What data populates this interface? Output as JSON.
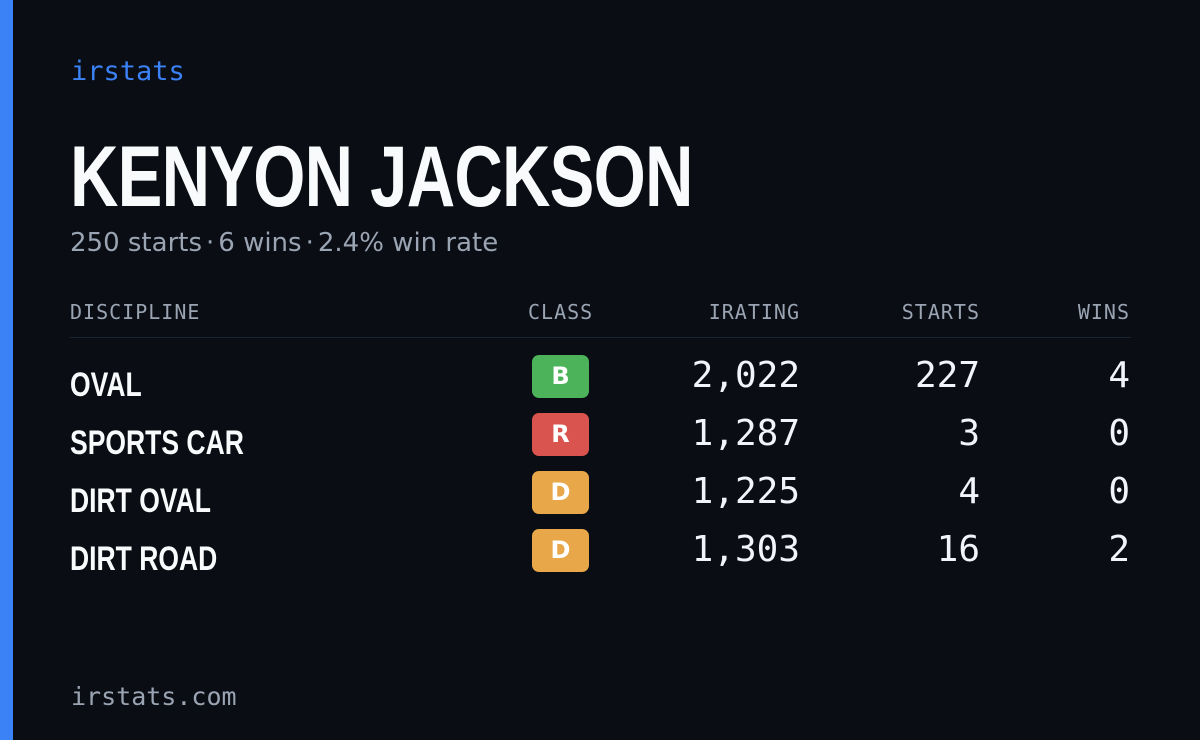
{
  "brand": "irstats",
  "driver": {
    "name": "KENYON JACKSON",
    "starts_text": "250 starts",
    "wins_text": "6 wins",
    "winrate_text": "2.4% win rate",
    "separator": "·"
  },
  "table": {
    "headers": {
      "discipline": "DISCIPLINE",
      "class": "CLASS",
      "irating": "IRATING",
      "starts": "STARTS",
      "wins": "WINS"
    },
    "rows": [
      {
        "discipline": "OVAL",
        "class": "B",
        "class_color": "#4cb35a",
        "irating": "2,022",
        "starts": "227",
        "wins": "4"
      },
      {
        "discipline": "SPORTS CAR",
        "class": "R",
        "class_color": "#d9534f",
        "irating": "1,287",
        "starts": "3",
        "wins": "0"
      },
      {
        "discipline": "DIRT OVAL",
        "class": "D",
        "class_color": "#e8a849",
        "irating": "1,225",
        "starts": "4",
        "wins": "0"
      },
      {
        "discipline": "DIRT ROAD",
        "class": "D",
        "class_color": "#e8a849",
        "irating": "1,303",
        "starts": "16",
        "wins": "2"
      }
    ]
  },
  "footer": "irstats.com",
  "colors": {
    "background": "#0a0d14",
    "accent": "#3b82f6",
    "muted_text": "#9aa4b2",
    "primary_text": "#f8fafc"
  }
}
